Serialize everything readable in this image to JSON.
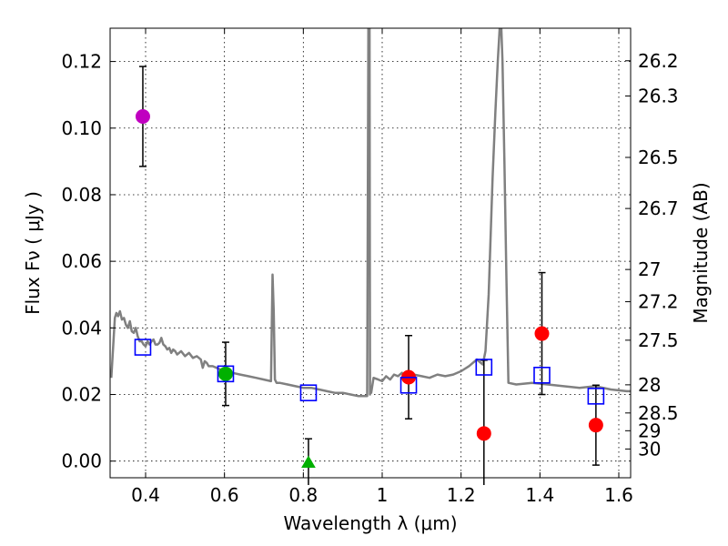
{
  "chart_data": {
    "type": "scatter",
    "title": "",
    "xlabel": "Wavelength  λ (μm)",
    "ylabel": "Flux  Fν  ( μJy )",
    "y2label": "Magnitude (AB)",
    "xlim": [
      0.31,
      1.63
    ],
    "ylim": [
      -0.005,
      0.13
    ],
    "xticks": [
      0.4,
      0.6,
      0.8,
      1.0,
      1.2,
      1.4,
      1.6
    ],
    "xtick_labels": [
      "0.4",
      "0.6",
      "0.8",
      "1",
      "1.2",
      "1.4",
      "1.6"
    ],
    "yticks": [
      0.0,
      0.02,
      0.04,
      0.06,
      0.08,
      0.1,
      0.12
    ],
    "ytick_labels": [
      "0.00",
      "0.02",
      "0.04",
      "0.06",
      "0.08",
      "0.10",
      "0.12"
    ],
    "mag_ticks": [
      "26.2",
      "26.3",
      "26.5",
      "26.7",
      "27",
      "27.2",
      "27.5",
      "28",
      "28.5",
      "29",
      "30"
    ],
    "grid": true,
    "colors": {
      "model": "#808080",
      "magenta": "#c000c0",
      "green": "#00b000",
      "red": "#ff0000",
      "blue": "#0000ff",
      "errorbar": "#000000"
    },
    "model_spectrum": {
      "name": "model SED",
      "x": [
        0.313,
        0.318,
        0.322,
        0.326,
        0.33,
        0.335,
        0.34,
        0.345,
        0.35,
        0.355,
        0.36,
        0.365,
        0.37,
        0.375,
        0.38,
        0.385,
        0.39,
        0.395,
        0.4,
        0.405,
        0.41,
        0.415,
        0.42,
        0.425,
        0.43,
        0.435,
        0.44,
        0.445,
        0.45,
        0.455,
        0.46,
        0.465,
        0.47,
        0.475,
        0.48,
        0.49,
        0.5,
        0.51,
        0.52,
        0.53,
        0.54,
        0.545,
        0.55,
        0.555,
        0.56,
        0.57,
        0.58,
        0.59,
        0.6,
        0.62,
        0.64,
        0.66,
        0.68,
        0.7,
        0.718,
        0.722,
        0.725,
        0.728,
        0.732,
        0.74,
        0.76,
        0.78,
        0.8,
        0.82,
        0.84,
        0.86,
        0.88,
        0.9,
        0.92,
        0.94,
        0.955,
        0.962,
        0.965,
        0.966,
        0.967,
        0.968,
        0.969,
        0.97,
        0.972,
        0.978,
        0.99,
        1.0,
        1.01,
        1.02,
        1.03,
        1.04,
        1.05,
        1.06,
        1.07,
        1.08,
        1.1,
        1.12,
        1.14,
        1.16,
        1.18,
        1.2,
        1.22,
        1.24,
        1.255,
        1.262,
        1.27,
        1.28,
        1.287,
        1.293,
        1.298,
        1.302,
        1.305,
        1.31,
        1.315,
        1.32,
        1.34,
        1.38,
        1.42,
        1.46,
        1.5,
        1.54,
        1.58,
        1.62,
        1.63
      ],
      "y": [
        0.025,
        0.035,
        0.043,
        0.0445,
        0.0435,
        0.045,
        0.0425,
        0.043,
        0.041,
        0.04,
        0.042,
        0.039,
        0.0385,
        0.04,
        0.0375,
        0.036,
        0.036,
        0.035,
        0.0345,
        0.036,
        0.035,
        0.036,
        0.0365,
        0.035,
        0.035,
        0.0355,
        0.037,
        0.035,
        0.0345,
        0.0335,
        0.034,
        0.0325,
        0.0335,
        0.033,
        0.032,
        0.033,
        0.0315,
        0.0325,
        0.031,
        0.0315,
        0.0305,
        0.028,
        0.03,
        0.0295,
        0.0285,
        0.0285,
        0.028,
        0.0275,
        0.027,
        0.0265,
        0.026,
        0.0255,
        0.025,
        0.0245,
        0.024,
        0.056,
        0.045,
        0.0245,
        0.0235,
        0.0235,
        0.023,
        0.0225,
        0.022,
        0.022,
        0.0215,
        0.021,
        0.0205,
        0.0205,
        0.02,
        0.0195,
        0.0195,
        0.0195,
        0.13,
        0.13,
        0.13,
        0.13,
        0.02,
        0.022,
        0.0205,
        0.025,
        0.0245,
        0.024,
        0.0255,
        0.0245,
        0.026,
        0.0255,
        0.0265,
        0.0245,
        0.0255,
        0.026,
        0.0255,
        0.025,
        0.026,
        0.0255,
        0.026,
        0.027,
        0.0285,
        0.0305,
        0.029,
        0.033,
        0.05,
        0.085,
        0.105,
        0.12,
        0.13,
        0.13,
        0.12,
        0.09,
        0.055,
        0.0235,
        0.023,
        0.0235,
        0.023,
        0.0225,
        0.022,
        0.0225,
        0.0215,
        0.021,
        0.021
      ]
    },
    "series": [
      {
        "name": "magenta point",
        "marker": "circle",
        "color": "#c000c0",
        "x": [
          0.393
        ],
        "y": [
          0.1035
        ],
        "err": [
          0.015
        ]
      },
      {
        "name": "green point",
        "marker": "circle",
        "color": "#00b000",
        "x": [
          0.603
        ],
        "y": [
          0.0262
        ],
        "err": [
          0.0095
        ]
      },
      {
        "name": "green upper limit",
        "marker": "triangle",
        "color": "#00b000",
        "x": [
          0.813
        ],
        "y": [
          -0.0005
        ],
        "err": [
          0.0072
        ]
      },
      {
        "name": "red points",
        "marker": "circle",
        "color": "#ff0000",
        "x": [
          1.067,
          1.258,
          1.405,
          1.542
        ],
        "y": [
          0.0252,
          0.0083,
          0.0383,
          0.0108
        ],
        "err": [
          0.0125,
          0.022,
          0.0183,
          0.012
        ]
      },
      {
        "name": "model bandpass fluxes",
        "marker": "square",
        "color": "#0000ff",
        "x": [
          0.393,
          0.603,
          0.813,
          1.067,
          1.258,
          1.405,
          1.542
        ],
        "y": [
          0.0342,
          0.0262,
          0.0205,
          0.0228,
          0.0282,
          0.0258,
          0.0195
        ],
        "err": null
      }
    ]
  }
}
